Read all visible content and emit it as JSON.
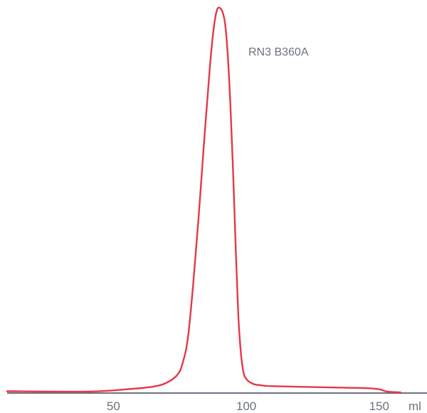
{
  "chart_data": {
    "type": "line",
    "title": "",
    "xlabel": "",
    "ylabel": "",
    "x_unit": "ml",
    "xlim": [
      10,
      168
    ],
    "ylim": [
      0,
      100
    ],
    "x_ticks": [
      50,
      100,
      150
    ],
    "grid": false,
    "annotations": [
      "RN3 B360A"
    ],
    "colors": {
      "series": "#e53848",
      "axis": "#6b7280",
      "text": "#6b7280"
    },
    "series": [
      {
        "x": [
          10,
          40,
          55,
          65,
          70,
          74,
          76,
          78,
          80,
          82,
          84,
          86,
          87,
          88,
          89,
          90,
          91,
          92,
          93,
          94,
          95,
          96,
          97,
          98,
          99,
          100,
          101,
          103,
          106,
          110,
          130,
          145,
          150,
          153,
          158
        ],
        "y": [
          0.3,
          0.2,
          0.8,
          1.5,
          2.5,
          4.5,
          7.5,
          14,
          28,
          45,
          64,
          82,
          90,
          96,
          99.5,
          100,
          99,
          96,
          88,
          75,
          58,
          38,
          20,
          10,
          5,
          3.5,
          2.8,
          2.1,
          1.8,
          1.6,
          1.3,
          1.1,
          0.8,
          0.2,
          0
        ]
      }
    ]
  }
}
